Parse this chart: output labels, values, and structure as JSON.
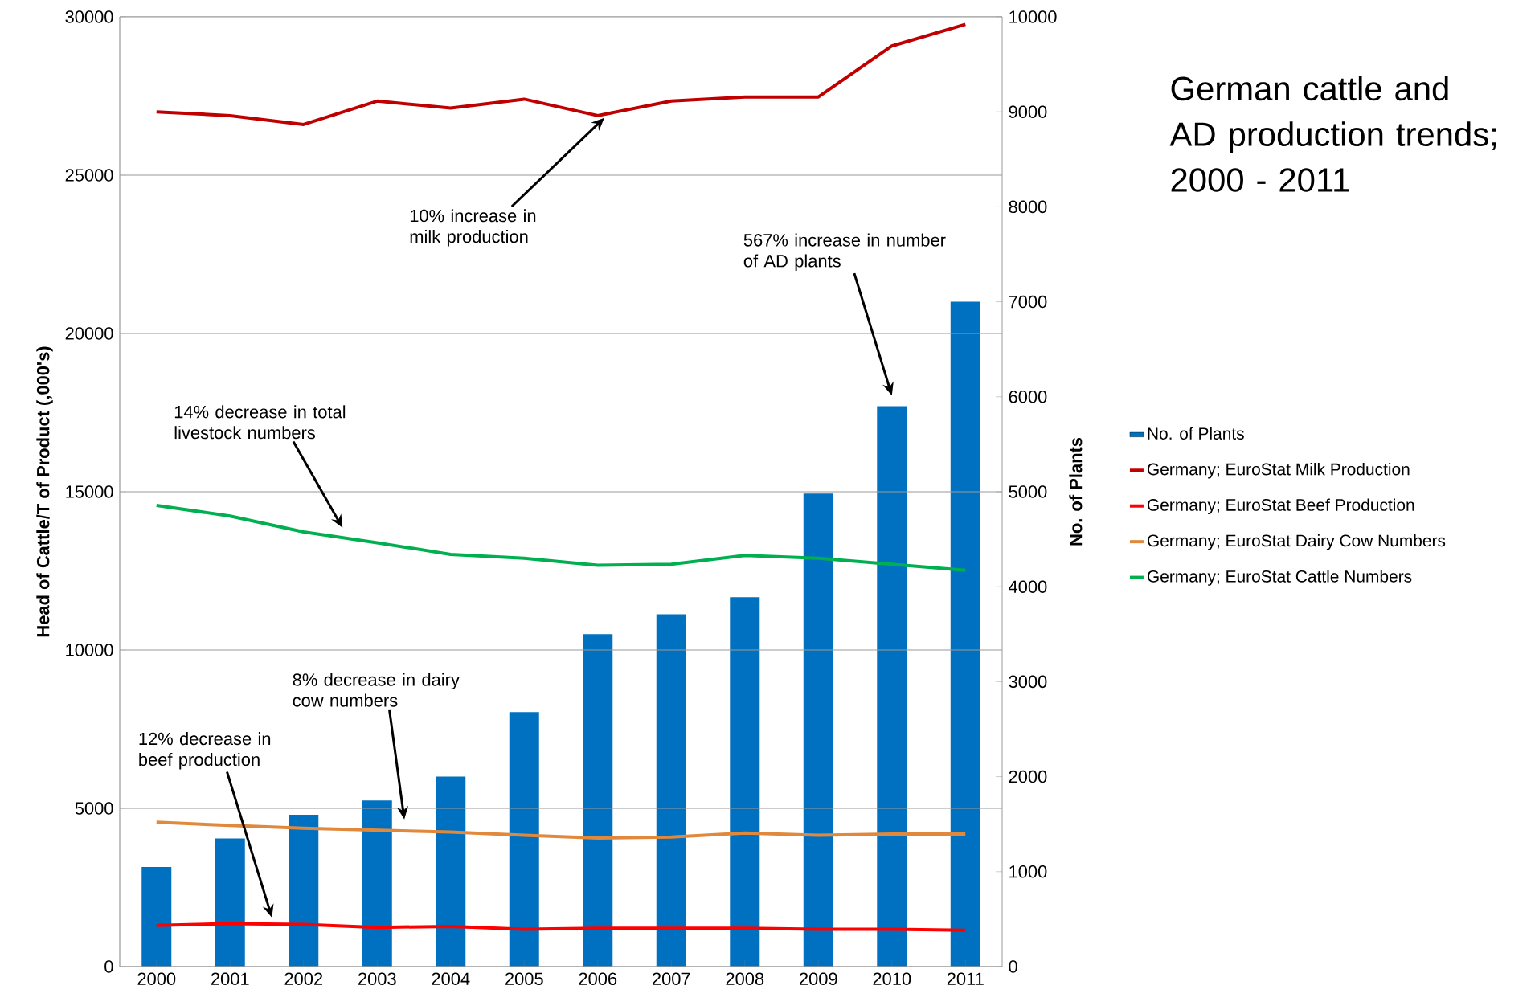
{
  "chart_data": {
    "type": "line",
    "title": "German cattle and AD production trends; 2000 - 2011",
    "ylabel": "Head of Cattle/T of Product (,000's)",
    "y2label": "No. of Plants",
    "categories": [
      "2000",
      "2001",
      "2002",
      "2003",
      "2004",
      "2005",
      "2006",
      "2007",
      "2008",
      "2009",
      "2010",
      "2011"
    ],
    "series": [
      {
        "name": "No. of Plants",
        "type": "bar",
        "axis": "y2",
        "color": "#0070c0",
        "values": [
          1050,
          1350,
          1600,
          1750,
          2000,
          2680,
          3500,
          3710,
          3890,
          4980,
          5900,
          7000
        ]
      },
      {
        "name": "Germany; EuroStat Milk Production",
        "color": "#c00000",
        "values": [
          27000,
          26880,
          26600,
          27340,
          27120,
          27400,
          26880,
          27340,
          27470,
          27470,
          29080,
          29760
        ]
      },
      {
        "name": "Germany; EuroStat Beef Production",
        "color": "#ff0000",
        "values": [
          1300,
          1360,
          1330,
          1240,
          1270,
          1180,
          1210,
          1210,
          1210,
          1180,
          1180,
          1150
        ]
      },
      {
        "name": "Germany; EuroStat Dairy Cow Numbers",
        "color": "#e0893c",
        "values": [
          4560,
          4460,
          4370,
          4310,
          4250,
          4150,
          4060,
          4090,
          4220,
          4150,
          4190,
          4190
        ]
      },
      {
        "name": "Germany; EuroStat Cattle Numbers",
        "color": "#00b050",
        "values": [
          14570,
          14230,
          13730,
          13390,
          13020,
          12900,
          12680,
          12710,
          12990,
          12900,
          12710,
          12520
        ]
      }
    ],
    "ylim": [
      0,
      30000
    ],
    "yticks": [
      0,
      5000,
      10000,
      15000,
      20000,
      25000,
      30000
    ],
    "y2lim": [
      0,
      10000
    ],
    "y2ticks": [
      0,
      1000,
      2000,
      3000,
      4000,
      5000,
      6000,
      7000,
      8000,
      9000,
      10000
    ],
    "grid": "y",
    "legend": "right",
    "line_style": "solid",
    "annotations": [
      "10% increase in milk production",
      "567% increase in number of AD plants",
      "14% decrease in total livestock numbers",
      "8% decrease in dairy cow numbers",
      "12% decrease in beef production"
    ]
  }
}
